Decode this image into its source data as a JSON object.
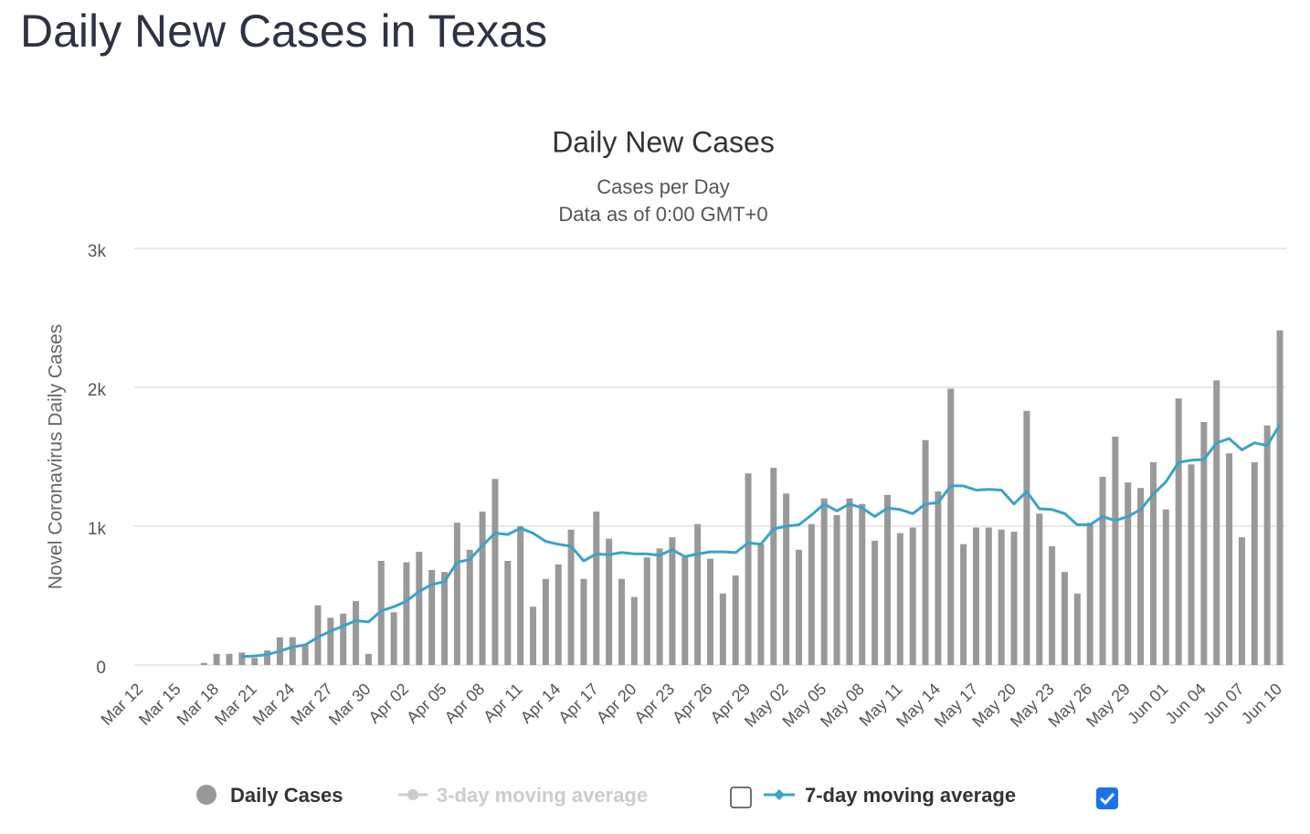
{
  "page_title": "Daily New Cases in Texas",
  "chart_data": {
    "type": "bar",
    "title": "Daily New Cases",
    "subtitle": [
      "Cases per Day",
      "Data as of 0:00 GMT+0"
    ],
    "y_label": "Novel Coronavirus Daily Cases",
    "categories": [
      "Mar 12",
      null,
      null,
      "Mar 15",
      null,
      null,
      "Mar 18",
      null,
      null,
      "Mar 21",
      null,
      null,
      "Mar 24",
      null,
      null,
      "Mar 27",
      null,
      null,
      "Mar 30",
      null,
      null,
      "Apr 02",
      null,
      null,
      "Apr 05",
      null,
      null,
      "Apr 08",
      null,
      null,
      "Apr 11",
      null,
      null,
      "Apr 14",
      null,
      null,
      "Apr 17",
      null,
      null,
      "Apr 20",
      null,
      null,
      "Apr 23",
      null,
      null,
      "Apr 26",
      null,
      null,
      "Apr 29",
      null,
      null,
      "May 02",
      null,
      null,
      "May 05",
      null,
      null,
      "May 08",
      null,
      null,
      "May 11",
      null,
      null,
      "May 14",
      null,
      null,
      "May 17",
      null,
      null,
      "May 20",
      null,
      null,
      "May 23",
      null,
      null,
      "May 26",
      null,
      null,
      "May 29",
      null,
      null,
      "Jun 01",
      null,
      null,
      "Jun 04",
      null,
      null,
      "Jun 07",
      null,
      null,
      "Jun 10"
    ],
    "series": [
      {
        "name": "Daily Cases",
        "type": "bar",
        "color": "#999999",
        "values": [
          0,
          0,
          0,
          0,
          0,
          15,
          80,
          80,
          90,
          50,
          105,
          200,
          200,
          145,
          430,
          340,
          370,
          460,
          80,
          750,
          380,
          740,
          815,
          685,
          670,
          1025,
          830,
          1105,
          1340,
          750,
          1000,
          420,
          620,
          725,
          975,
          620,
          1105,
          910,
          620,
          490,
          775,
          840,
          920,
          775,
          1015,
          765,
          515,
          645,
          1380,
          870,
          1420,
          1235,
          830,
          1015,
          1200,
          1080,
          1200,
          1160,
          895,
          1225,
          950,
          990,
          1620,
          1250,
          1990,
          870,
          990,
          990,
          975,
          960,
          1830,
          1090,
          855,
          670,
          515,
          1025,
          1355,
          1645,
          1315,
          1275,
          1460,
          1120,
          1920,
          1445,
          1750,
          2050,
          1525,
          920,
          1460,
          1725,
          2410
        ]
      },
      {
        "name": "7-day moving average",
        "type": "line",
        "color": "#3aa3c8",
        "values": [
          null,
          null,
          null,
          null,
          null,
          null,
          null,
          null,
          60,
          65,
          75,
          100,
          130,
          145,
          200,
          245,
          280,
          320,
          310,
          390,
          420,
          460,
          530,
          580,
          600,
          740,
          760,
          860,
          950,
          940,
          985,
          950,
          890,
          870,
          855,
          750,
          800,
          795,
          810,
          800,
          800,
          790,
          830,
          780,
          800,
          815,
          815,
          810,
          880,
          870,
          980,
          1000,
          1010,
          1080,
          1160,
          1110,
          1160,
          1130,
          1070,
          1130,
          1120,
          1090,
          1160,
          1170,
          1290,
          1290,
          1260,
          1265,
          1260,
          1160,
          1250,
          1125,
          1120,
          1090,
          1010,
          1010,
          1070,
          1040,
          1070,
          1120,
          1230,
          1320,
          1460,
          1475,
          1480,
          1600,
          1630,
          1550,
          1600,
          1580,
          1730
        ]
      }
    ],
    "inactive_series": [
      {
        "name": "3-day moving average",
        "color": "#cccccc"
      }
    ],
    "ylim": [
      0,
      3000
    ],
    "yticks": [
      0,
      {
        "value": 1000,
        "label": "1k"
      },
      {
        "value": 2000,
        "label": "2k"
      },
      {
        "value": 3000,
        "label": "3k"
      }
    ],
    "grid": true
  }
}
